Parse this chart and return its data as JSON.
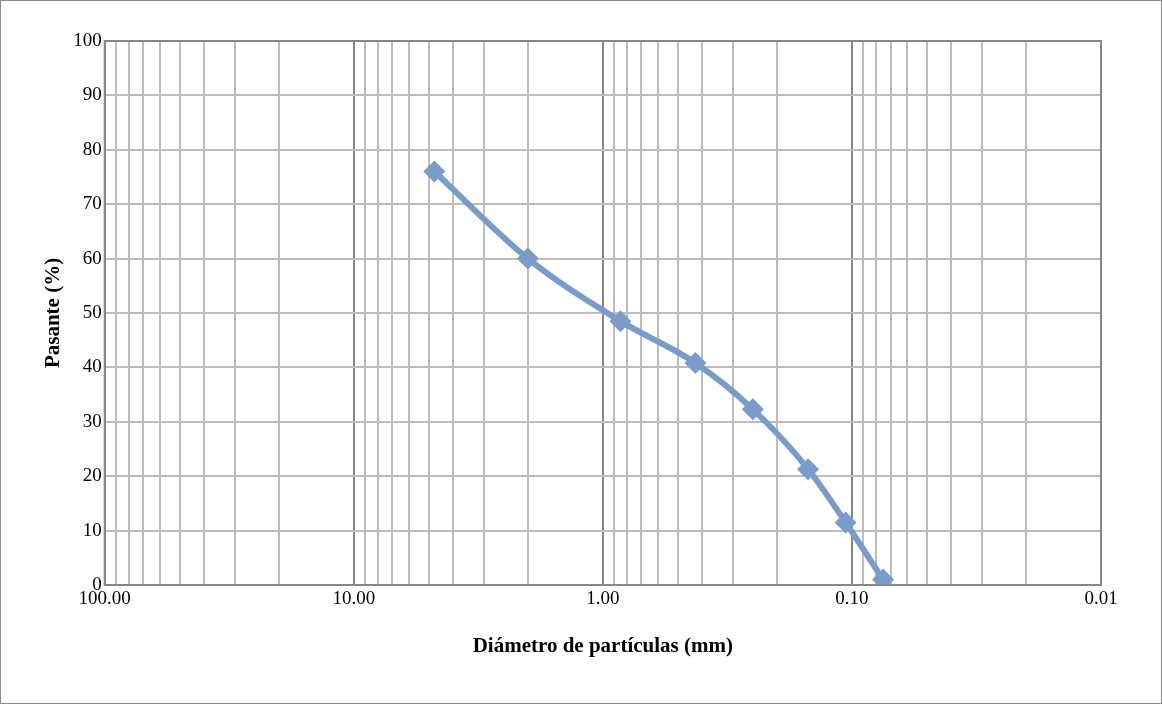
{
  "chart_data": {
    "type": "line",
    "xlabel": "Diámetro de partículas (mm)",
    "ylabel": "Pasante (%)",
    "log": "x",
    "xlim": [
      100,
      0.01
    ],
    "xticks": [
      {
        "value": 100,
        "label": "100.00"
      },
      {
        "value": 90,
        "label": null
      },
      {
        "value": 80,
        "label": null
      },
      {
        "value": 70,
        "label": null
      },
      {
        "value": 60,
        "label": null
      },
      {
        "value": 50,
        "label": null
      },
      {
        "value": 40,
        "label": null
      },
      {
        "value": 30,
        "label": null
      },
      {
        "value": 20,
        "label": null
      },
      {
        "value": 10,
        "label": "10.00"
      },
      {
        "value": 9,
        "label": null
      },
      {
        "value": 8,
        "label": null
      },
      {
        "value": 7,
        "label": null
      },
      {
        "value": 6,
        "label": null
      },
      {
        "value": 5,
        "label": null
      },
      {
        "value": 4,
        "label": null
      },
      {
        "value": 3,
        "label": null
      },
      {
        "value": 2,
        "label": null
      },
      {
        "value": 1,
        "label": "1.00"
      },
      {
        "value": 0.9,
        "label": null
      },
      {
        "value": 0.8,
        "label": null
      },
      {
        "value": 0.7,
        "label": null
      },
      {
        "value": 0.6,
        "label": null
      },
      {
        "value": 0.5,
        "label": null
      },
      {
        "value": 0.4,
        "label": null
      },
      {
        "value": 0.3,
        "label": null
      },
      {
        "value": 0.2,
        "label": null
      },
      {
        "value": 0.1,
        "label": "0.10"
      },
      {
        "value": 0.09,
        "label": null
      },
      {
        "value": 0.08,
        "label": null
      },
      {
        "value": 0.07,
        "label": null
      },
      {
        "value": 0.06,
        "label": null
      },
      {
        "value": 0.05,
        "label": null
      },
      {
        "value": 0.04,
        "label": null
      },
      {
        "value": 0.03,
        "label": null
      },
      {
        "value": 0.02,
        "label": null
      },
      {
        "value": 0.01,
        "label": "0.01"
      }
    ],
    "ylim": [
      0,
      100
    ],
    "yticks": [
      0,
      10,
      20,
      30,
      40,
      50,
      60,
      70,
      80,
      90,
      100
    ],
    "grid": true,
    "legend": false,
    "marker": "diamond",
    "line_style": "solid",
    "series": [
      {
        "color": "#7b9cc9",
        "x": [
          4.75,
          2.0,
          0.85,
          0.425,
          0.25,
          0.15,
          0.106,
          0.075
        ],
        "values": [
          76,
          60,
          48.5,
          40.8,
          32.3,
          21.3,
          11.5,
          1
        ]
      }
    ]
  }
}
